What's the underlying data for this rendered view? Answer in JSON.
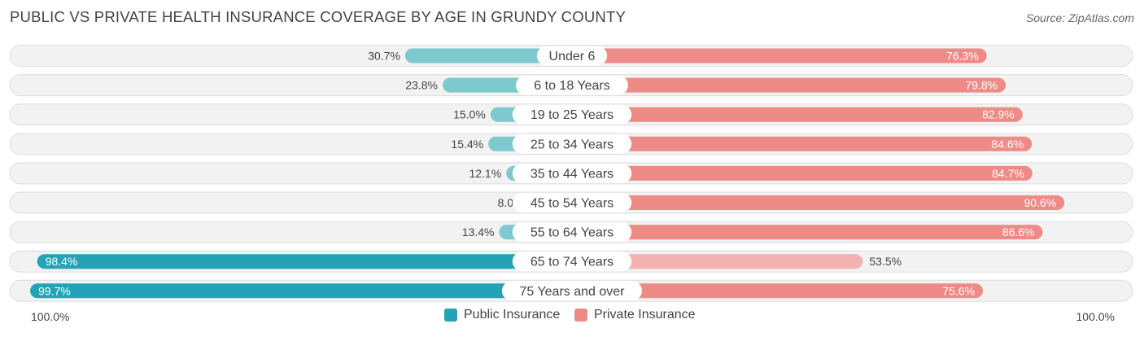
{
  "title": "PUBLIC VS PRIVATE HEALTH INSURANCE COVERAGE BY AGE IN GRUNDY COUNTY",
  "source": "Source: ZipAtlas.com",
  "colors": {
    "public": "#7ec8d0",
    "public_dark": "#23a3b5",
    "private": "#ee8b87",
    "private_light": "#f4b3b0",
    "row_bg": "#f2f2f2",
    "row_border": "#dddddd"
  },
  "chart_data": {
    "type": "bar",
    "orientation": "horizontal-diverging",
    "categories": [
      "Under 6",
      "6 to 18 Years",
      "19 to 25 Years",
      "25 to 34 Years",
      "35 to 44 Years",
      "45 to 54 Years",
      "55 to 64 Years",
      "65 to 74 Years",
      "75 Years and over"
    ],
    "series": [
      {
        "name": "Public Insurance",
        "values": [
          30.7,
          23.8,
          15.0,
          15.4,
          12.1,
          8.0,
          13.4,
          98.4,
          99.7
        ],
        "labels": [
          "30.7%",
          "23.8%",
          "15.0%",
          "15.4%",
          "12.1%",
          "8.0%",
          "13.4%",
          "98.4%",
          "99.7%"
        ]
      },
      {
        "name": "Private Insurance",
        "values": [
          76.3,
          79.8,
          82.9,
          84.6,
          84.7,
          90.6,
          86.6,
          53.5,
          75.6
        ],
        "labels": [
          "76.3%",
          "79.8%",
          "82.9%",
          "84.6%",
          "84.7%",
          "90.6%",
          "86.6%",
          "53.5%",
          "75.6%"
        ]
      }
    ],
    "xlim": [
      -100,
      100
    ],
    "axis_left_label": "100.0%",
    "axis_right_label": "100.0%",
    "legend_position": "bottom-center"
  }
}
